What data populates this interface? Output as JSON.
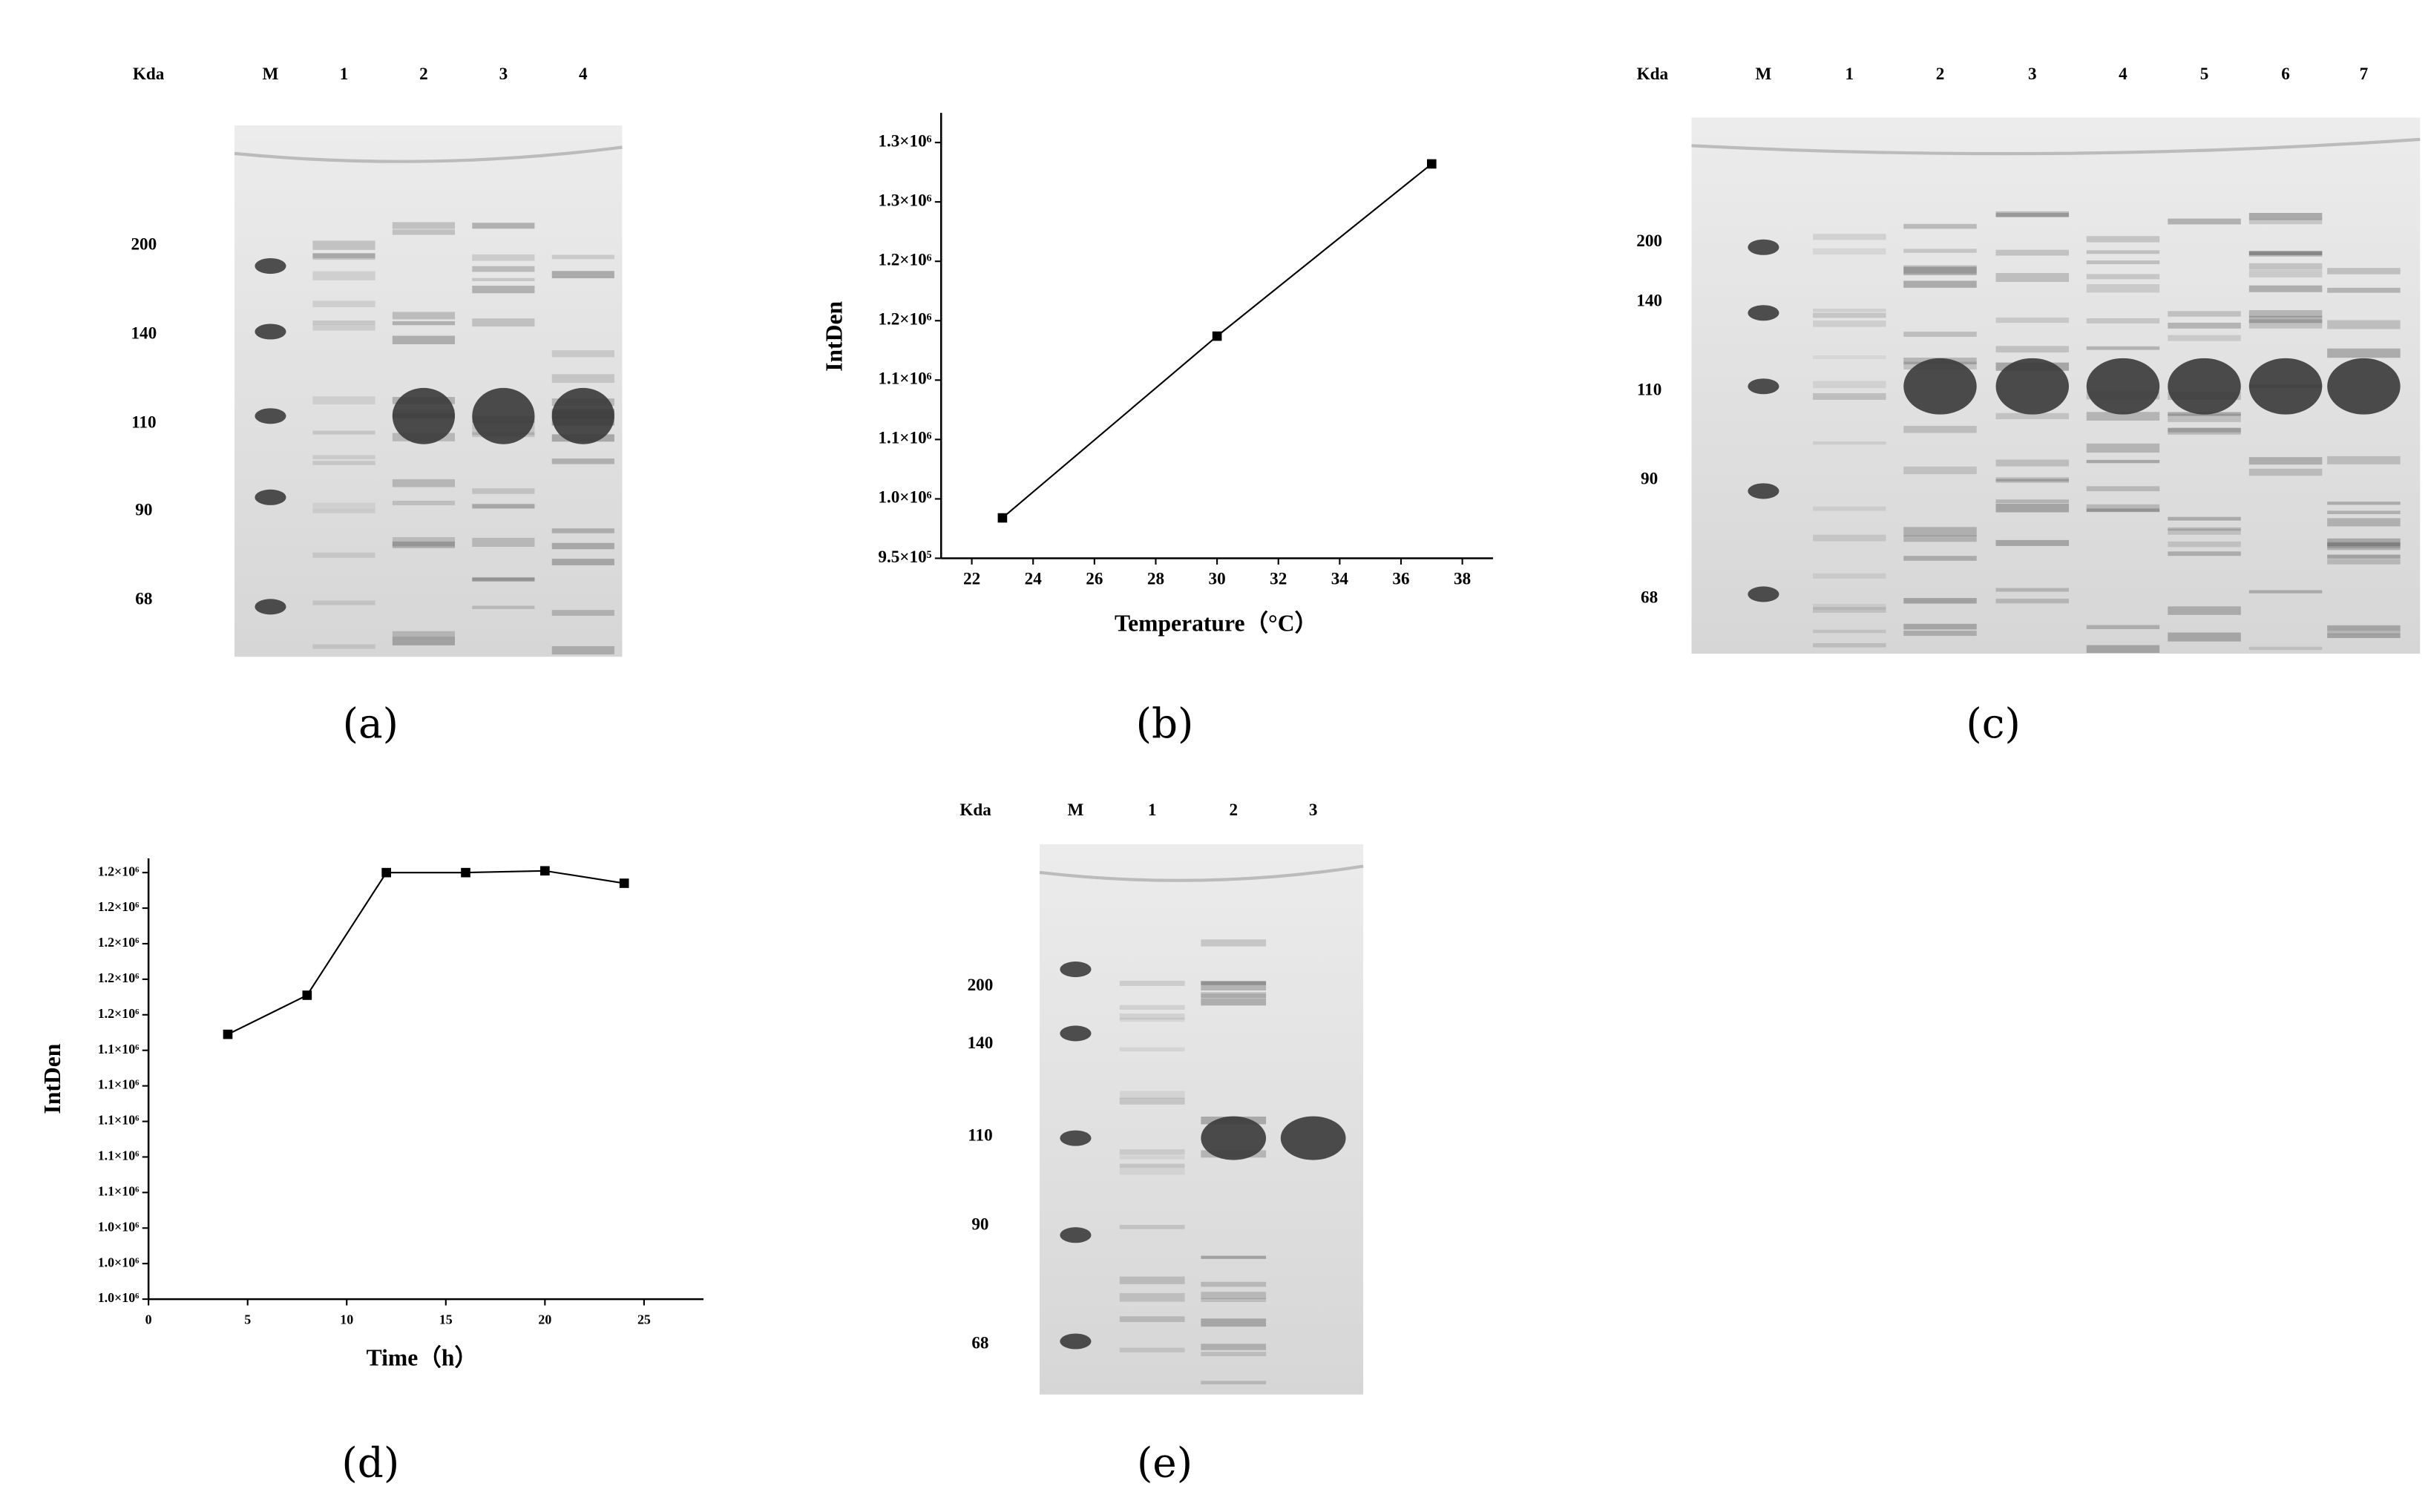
{
  "chart_data": [
    {
      "type": "line",
      "panel": "(b)",
      "x_label": "Temperature（°C）",
      "y_label": "IntDen",
      "color": "#000000",
      "x": [
        23,
        30,
        37
      ],
      "values": [
        984000,
        1137000,
        1282000
      ],
      "xlim": [
        21,
        39
      ],
      "xticks": [
        22,
        24,
        26,
        28,
        30,
        32,
        34,
        36,
        38
      ],
      "ylim": [
        950000,
        1325000
      ],
      "yticks": [
        {
          "value": 950000,
          "label": "9.5×10⁵"
        },
        {
          "value": 1000000,
          "label": "1.0×10⁶"
        },
        {
          "value": 1050000,
          "label": "1.1×10⁶"
        },
        {
          "value": 1100000,
          "label": "1.1×10⁶"
        },
        {
          "value": 1150000,
          "label": "1.2×10⁶"
        },
        {
          "value": 1200000,
          "label": "1.2×10⁶"
        },
        {
          "value": 1250000,
          "label": "1.3×10⁶"
        },
        {
          "value": 1300000,
          "label": "1.3×10⁶"
        }
      ]
    },
    {
      "type": "line",
      "panel": "(d)",
      "x_label": "Time（h）",
      "y_label": "IntDen",
      "color": "#000000",
      "x": [
        4,
        8,
        12,
        16,
        20,
        24
      ],
      "values": [
        1149000,
        1171000,
        1240000,
        1240000,
        1241000,
        1234000
      ],
      "xlim": [
        0,
        28
      ],
      "xticks": [
        0,
        5,
        10,
        15,
        20,
        25
      ],
      "ylim": [
        1000000,
        1248000
      ],
      "yticks": [
        {
          "value": 1000000,
          "label": "1.0×10⁶"
        },
        {
          "value": 1020000,
          "label": "1.0×10⁶"
        },
        {
          "value": 1040000,
          "label": "1.0×10⁶"
        },
        {
          "value": 1060000,
          "label": "1.1×10⁶"
        },
        {
          "value": 1080000,
          "label": "1.1×10⁶"
        },
        {
          "value": 1100000,
          "label": "1.1×10⁶"
        },
        {
          "value": 1120000,
          "label": "1.1×10⁶"
        },
        {
          "value": 1140000,
          "label": "1.1×10⁶"
        },
        {
          "value": 1160000,
          "label": "1.2×10⁶"
        },
        {
          "value": 1180000,
          "label": "1.2×10⁶"
        },
        {
          "value": 1200000,
          "label": "1.2×10⁶"
        },
        {
          "value": 1220000,
          "label": "1.2×10⁶"
        },
        {
          "value": 1240000,
          "label": "1.2×10⁶"
        }
      ]
    }
  ],
  "gels": [
    {
      "panel": "(a)",
      "unit": "Kda",
      "lanes": [
        "M",
        "1",
        "2",
        "3",
        "4"
      ],
      "markers": [
        "200",
        "140",
        "110",
        "90",
        "68"
      ]
    },
    {
      "panel": "(c)",
      "unit": "Kda",
      "lanes": [
        "M",
        "1",
        "2",
        "3",
        "4",
        "5",
        "6",
        "7"
      ],
      "markers": [
        "200",
        "140",
        "110",
        "90",
        "68"
      ]
    },
    {
      "panel": "(e)",
      "unit": "Kda",
      "lanes": [
        "M",
        "1",
        "2",
        "3"
      ],
      "markers": [
        "200",
        "140",
        "110",
        "90",
        "68"
      ]
    }
  ]
}
